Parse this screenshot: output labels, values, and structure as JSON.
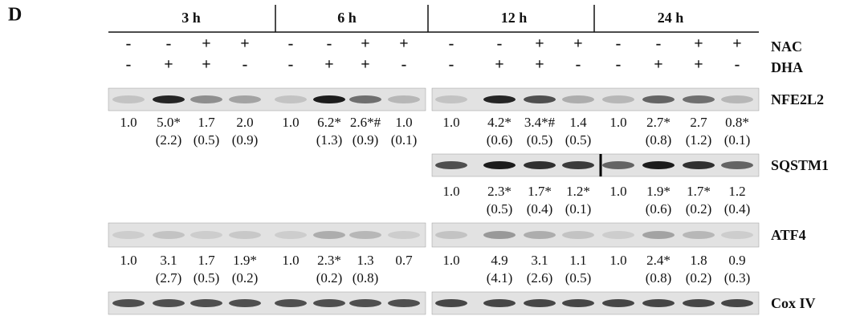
{
  "panel_label": "D",
  "time_points": [
    "3 h",
    "6 h",
    "12 h",
    "24 h"
  ],
  "treatments": [
    {
      "name": "NAC",
      "signs": [
        "-",
        "-",
        "+",
        "+",
        "-",
        "-",
        "+",
        "+",
        "-",
        "-",
        "+",
        "+",
        "-",
        "-",
        "+",
        "+"
      ]
    },
    {
      "name": "DHA",
      "signs": [
        "-",
        "+",
        "+",
        "-",
        "-",
        "+",
        "+",
        "-",
        "-",
        "+",
        "+",
        "-",
        "-",
        "+",
        "+",
        "-"
      ]
    }
  ],
  "blots": [
    {
      "name": "NFE2L2",
      "values": [
        "1.0",
        "5.0*",
        "1.7",
        "2.0",
        "1.0",
        "6.2*",
        "2.6*#",
        "1.0",
        "1.0",
        "4.2*",
        "3.4*#",
        "1.4",
        "1.0",
        "2.7*",
        "2.7",
        "0.8*"
      ],
      "sd": [
        null,
        "(2.2)",
        "(0.5)",
        "(0.9)",
        null,
        "(1.3)",
        "(0.9)",
        "(0.1)",
        null,
        "(0.6)",
        "(0.5)",
        "(0.5)",
        null,
        "(0.8)",
        "(1.2)",
        "(0.1)"
      ]
    },
    {
      "name": "SQSTM1",
      "values": [
        null,
        null,
        null,
        null,
        null,
        null,
        null,
        null,
        "1.0",
        "2.3*",
        "1.7*",
        "1.2*",
        "1.0",
        "1.9*",
        "1.7*",
        "1.2"
      ],
      "sd": [
        null,
        null,
        null,
        null,
        null,
        null,
        null,
        null,
        null,
        "(0.5)",
        "(0.4)",
        "(0.1)",
        null,
        "(0.6)",
        "(0.2)",
        "(0.4)"
      ]
    },
    {
      "name": "ATF4",
      "values": [
        "1.0",
        "3.1",
        "1.7",
        "1.9*",
        "1.0",
        "2.3*",
        "1.3",
        "0.7",
        "1.0",
        "4.9",
        "3.1",
        "1.1",
        "1.0",
        "2.4*",
        "1.8",
        "0.9"
      ],
      "sd": [
        null,
        "(2.7)",
        "(0.5)",
        "(0.2)",
        null,
        "(0.2)",
        "(0.8)",
        null,
        null,
        "(4.1)",
        "(2.6)",
        "(0.5)",
        null,
        "(0.8)",
        "(0.2)",
        "(0.3)"
      ]
    },
    {
      "name": "Cox IV",
      "values": null,
      "sd": null
    }
  ]
}
